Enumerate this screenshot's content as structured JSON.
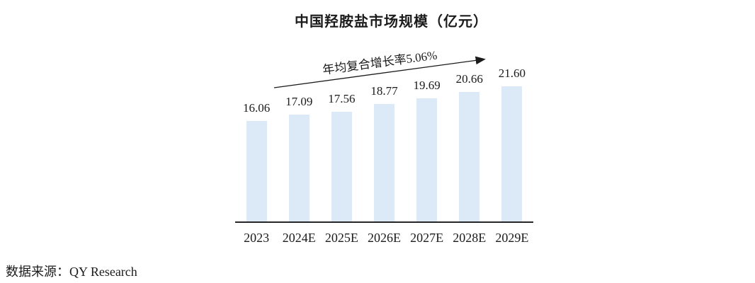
{
  "source": "数据来源：QY Research",
  "colors": {
    "bar": "#DCEAF7",
    "axis": "#262626",
    "text": "#1B1B1B",
    "arrow": "#1B1B1B"
  },
  "chart_data": {
    "type": "bar",
    "title": "中国羟胺盐市场规模（亿元）",
    "unit": "亿元",
    "annotation": "年均复合增长率5.06%",
    "categories": [
      "2023",
      "2024E",
      "2025E",
      "2026E",
      "2027E",
      "2028E",
      "2029E"
    ],
    "values": [
      16.06,
      17.09,
      17.56,
      18.77,
      19.69,
      20.66,
      21.6
    ],
    "value_labels": [
      "16.06",
      "17.09",
      "17.56",
      "18.77",
      "19.69",
      "20.66",
      "21.60"
    ],
    "xlabel": "",
    "ylabel": "",
    "ylim": [
      0,
      22
    ],
    "grid": false,
    "legend": false
  }
}
